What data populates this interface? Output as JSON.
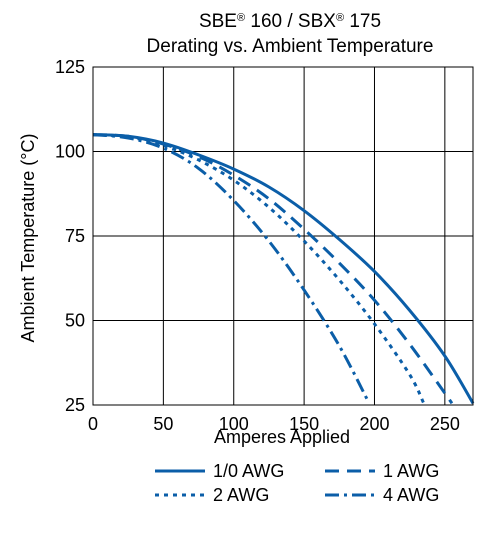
{
  "chart_data": {
    "type": "line",
    "title": {
      "line1": [
        {
          "text": "SBE",
          "sup": false
        },
        {
          "text": "®",
          "sup": true
        },
        {
          "text": " 160 / SBX",
          "sup": false
        },
        {
          "text": "®",
          "sup": true
        },
        {
          "text": " 175",
          "sup": false
        }
      ],
      "line2": "Derating vs. Ambient Temperature"
    },
    "xlabel": "Amperes Applied",
    "ylabel": "Ambient Temperature (°C)",
    "xlim": [
      0,
      270
    ],
    "ylim": [
      25,
      125
    ],
    "xticks": [
      0,
      50,
      100,
      150,
      200,
      250
    ],
    "yticks": [
      25,
      50,
      75,
      100,
      125
    ],
    "grid": true,
    "legend_position": "bottom",
    "line_color": "#0b5ea8",
    "series": [
      {
        "name": "1/0 AWG",
        "dash": "solid",
        "points": [
          [
            0,
            105
          ],
          [
            25,
            104.5
          ],
          [
            50,
            102.5
          ],
          [
            75,
            99
          ],
          [
            100,
            94.8
          ],
          [
            125,
            89.5
          ],
          [
            150,
            82.5
          ],
          [
            175,
            74
          ],
          [
            200,
            64.5
          ],
          [
            225,
            53
          ],
          [
            250,
            39.5
          ],
          [
            270,
            25.5
          ]
        ]
      },
      {
        "name": "1 AWG",
        "dash": "dash",
        "points": [
          [
            0,
            105
          ],
          [
            25,
            104.5
          ],
          [
            50,
            102.2
          ],
          [
            75,
            98.5
          ],
          [
            100,
            93
          ],
          [
            125,
            86
          ],
          [
            150,
            77
          ],
          [
            175,
            67
          ],
          [
            200,
            56
          ],
          [
            225,
            43
          ],
          [
            250,
            28.5
          ],
          [
            255,
            25.5
          ]
        ]
      },
      {
        "name": "2 AWG",
        "dash": "dot",
        "points": [
          [
            0,
            105
          ],
          [
            25,
            104.3
          ],
          [
            50,
            101.8
          ],
          [
            75,
            97.5
          ],
          [
            100,
            91.5
          ],
          [
            125,
            83.5
          ],
          [
            150,
            73.5
          ],
          [
            175,
            62
          ],
          [
            200,
            49
          ],
          [
            225,
            34
          ],
          [
            235,
            25.5
          ]
        ]
      },
      {
        "name": "4 AWG",
        "dash": "dashdot",
        "points": [
          [
            0,
            105
          ],
          [
            25,
            104
          ],
          [
            50,
            101
          ],
          [
            75,
            95
          ],
          [
            100,
            85.5
          ],
          [
            125,
            73.5
          ],
          [
            150,
            59
          ],
          [
            175,
            42.5
          ],
          [
            195,
            26.5
          ]
        ]
      }
    ]
  }
}
